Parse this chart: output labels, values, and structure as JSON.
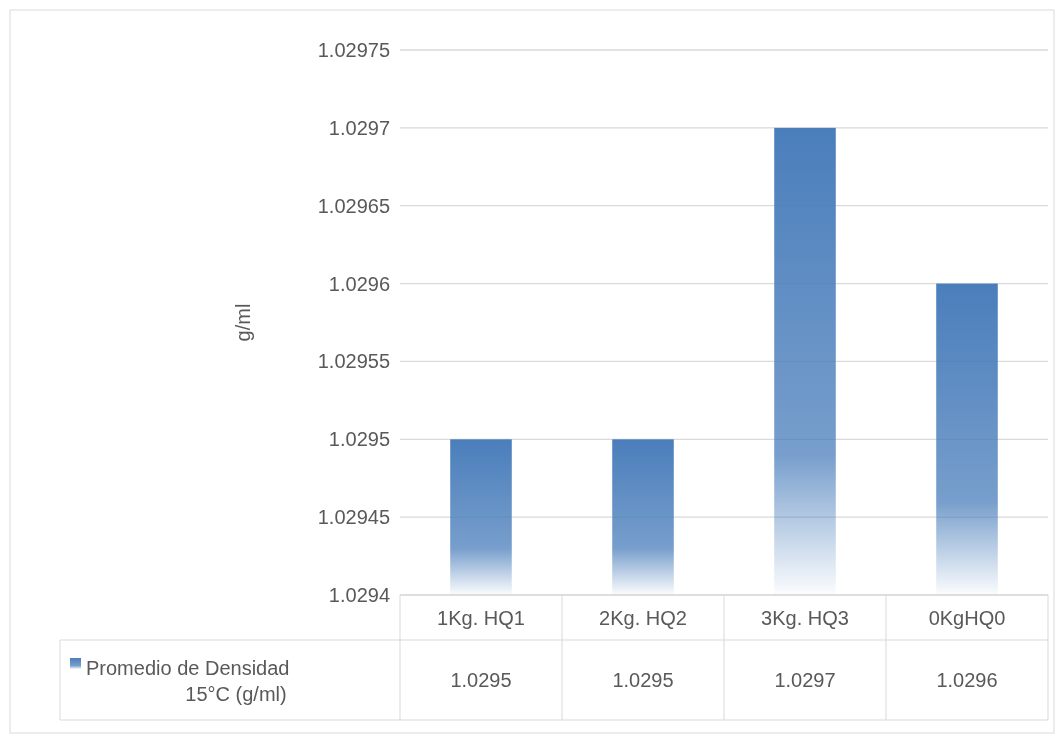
{
  "chart_data": {
    "type": "bar",
    "ylabel": "g/ml",
    "categories": [
      "1Kg. HQ1",
      "2Kg. HQ2",
      "3Kg. HQ3",
      "0KgHQ0"
    ],
    "series": [
      {
        "name": "Promedio de Densidad 15°C (g/ml)",
        "color": "#4a7ebb",
        "values": [
          1.0295,
          1.0295,
          1.0297,
          1.0296
        ]
      }
    ],
    "ylim": [
      1.0294,
      1.02975
    ],
    "yticks": [
      1.0294,
      1.02945,
      1.0295,
      1.02955,
      1.0296,
      1.02965,
      1.0297,
      1.02975
    ],
    "grid": "y",
    "legend": "bottom",
    "data_labels": true
  }
}
